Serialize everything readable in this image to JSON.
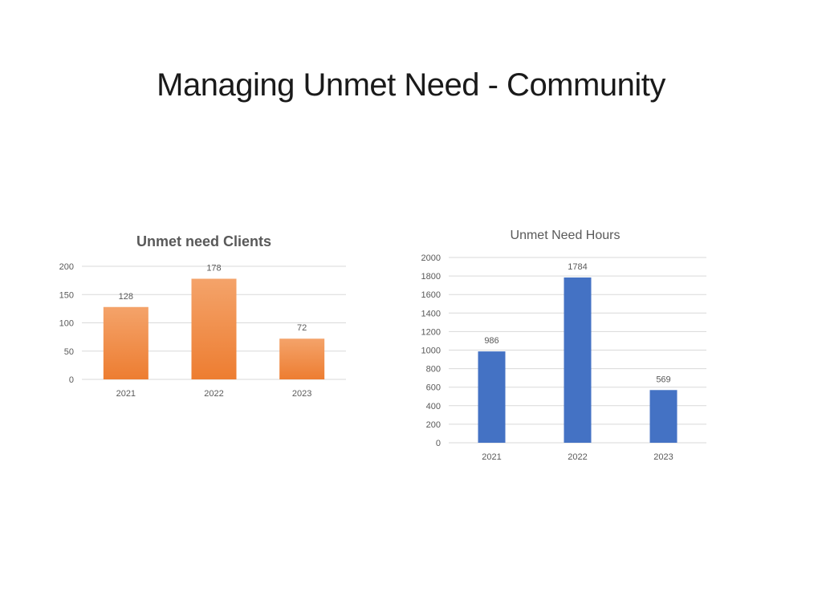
{
  "slide": {
    "title": "Managing Unmet Need - Community"
  },
  "chart_data": [
    {
      "type": "bar",
      "title": "Unmet need Clients",
      "categories": [
        "2021",
        "2022",
        "2023"
      ],
      "values": [
        128,
        178,
        72
      ],
      "data_labels": [
        "128",
        "178",
        "72"
      ],
      "ylim": [
        0,
        200
      ],
      "yticks": [
        0,
        50,
        100,
        150,
        200
      ],
      "ytick_labels": [
        "0",
        "50",
        "100",
        "150",
        "200"
      ],
      "xlabel": "",
      "ylabel": "",
      "grid": true,
      "legend": "none",
      "color": "#ED7D31",
      "color_light": "#F4A36A"
    },
    {
      "type": "bar",
      "title": "Unmet Need Hours",
      "categories": [
        "2021",
        "2022",
        "2023"
      ],
      "values": [
        986,
        1784,
        569
      ],
      "data_labels": [
        "986",
        "1784",
        "569"
      ],
      "ylim": [
        0,
        2000
      ],
      "yticks": [
        0,
        200,
        400,
        600,
        800,
        1000,
        1200,
        1400,
        1600,
        1800,
        2000
      ],
      "ytick_labels": [
        "0",
        "200",
        "400",
        "600",
        "800",
        "1000",
        "1200",
        "1400",
        "1600",
        "1800",
        "2000"
      ],
      "xlabel": "",
      "ylabel": "",
      "grid": true,
      "legend": "none",
      "color": "#4472C4"
    }
  ]
}
